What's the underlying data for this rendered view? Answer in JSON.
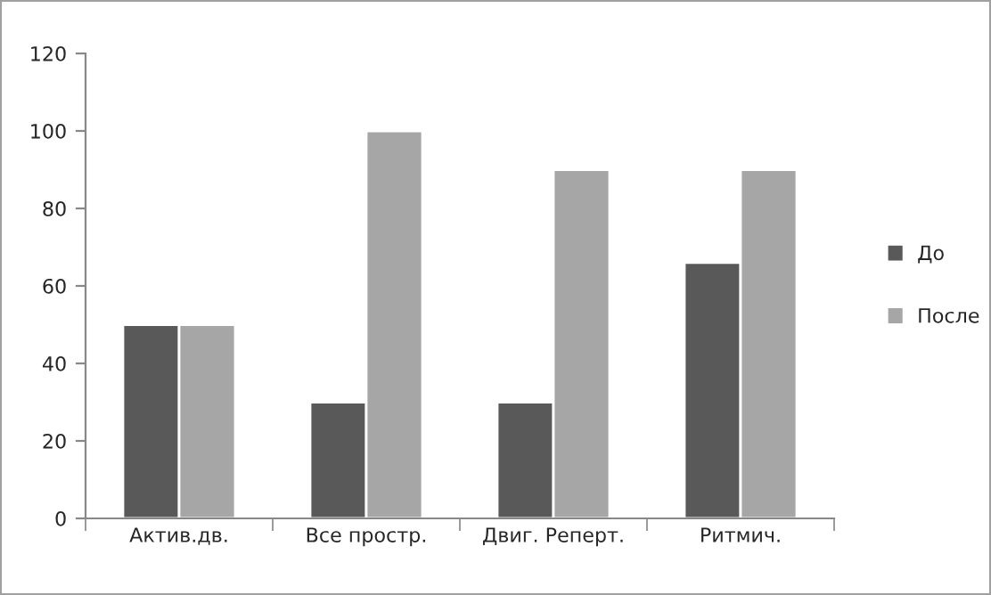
{
  "chart_data": {
    "type": "bar",
    "categories": [
      "Актив.дв.",
      "Все простр.",
      "Двиг. Реперт.",
      "Ритмич."
    ],
    "series": [
      {
        "name": "До",
        "color": "#595959",
        "values": [
          50,
          30,
          30,
          66
        ]
      },
      {
        "name": "После",
        "color": "#a6a6a6",
        "values": [
          50,
          100,
          90,
          90
        ]
      }
    ],
    "ylim": [
      0,
      120
    ],
    "yticks": [
      0,
      20,
      40,
      60,
      80,
      100,
      120
    ],
    "grid": false,
    "legend": "right"
  }
}
